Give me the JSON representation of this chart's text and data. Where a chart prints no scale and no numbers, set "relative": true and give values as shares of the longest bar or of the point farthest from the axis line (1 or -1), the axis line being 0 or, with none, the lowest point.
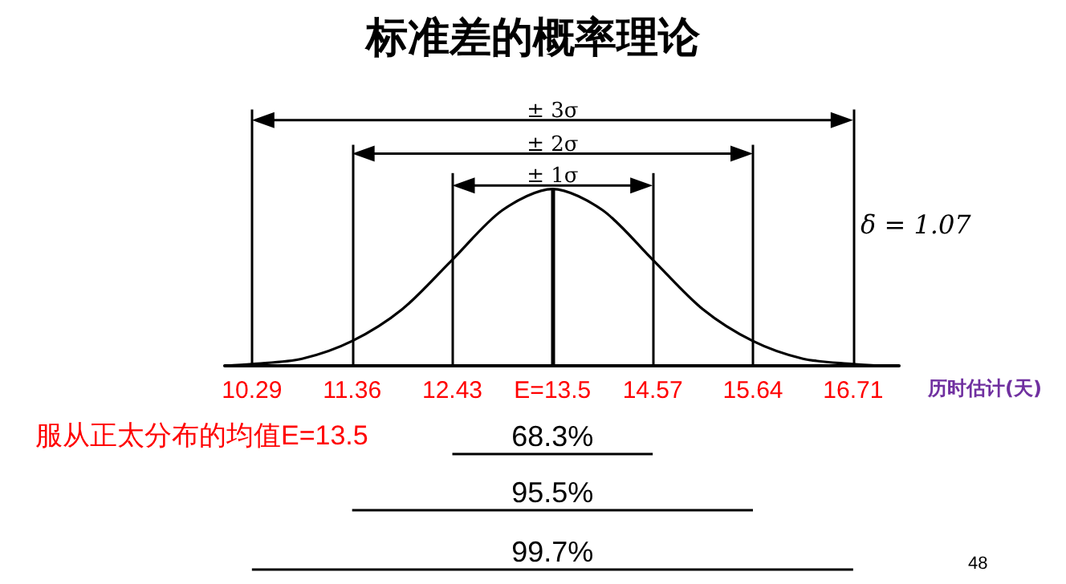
{
  "chart_data": {
    "type": "line",
    "title": "标准差的概率理论",
    "xlabel": "历时估计(天)",
    "relative": true,
    "x": [
      10.0,
      10.29,
      10.825,
      11.36,
      11.895,
      12.43,
      12.965,
      13.5,
      14.035,
      14.57,
      15.105,
      15.64,
      16.175,
      16.71,
      17.0
    ],
    "series": [
      {
        "color": "#000000",
        "values": [
          0,
          0.01,
          0.04,
          0.14,
          0.32,
          0.6,
          0.88,
          1,
          0.88,
          0.6,
          0.32,
          0.14,
          0.04,
          0.01,
          0
        ]
      }
    ],
    "xlim": [
      10.0,
      17.2
    ],
    "xticks": [
      10.29,
      11.36,
      12.43,
      {
        "value": 13.5,
        "label": "E=13.5"
      },
      14.57,
      15.64,
      16.71
    ],
    "ref_lines": [
      {
        "axis": "x",
        "value": 10.29,
        "color": "#000000"
      },
      {
        "axis": "x",
        "value": 11.36,
        "color": "#000000"
      },
      {
        "axis": "x",
        "value": 12.43,
        "color": "#000000"
      },
      {
        "axis": "x",
        "value": 13.5,
        "color": "#000000"
      },
      {
        "axis": "x",
        "value": 14.57,
        "color": "#000000"
      },
      {
        "axis": "x",
        "value": 15.64,
        "color": "#000000"
      },
      {
        "axis": "x",
        "value": 16.71,
        "color": "#000000"
      }
    ],
    "annotations": [
      "± 3σ",
      "± 2σ",
      "± 1σ",
      "δ = 1.07",
      "服从正太分布的均值E=13.5",
      "68.3%",
      "95.5%",
      "99.7%",
      "48"
    ],
    "grid": false,
    "marker": "none",
    "line_style": "solid",
    "tick_labels": "x"
  }
}
